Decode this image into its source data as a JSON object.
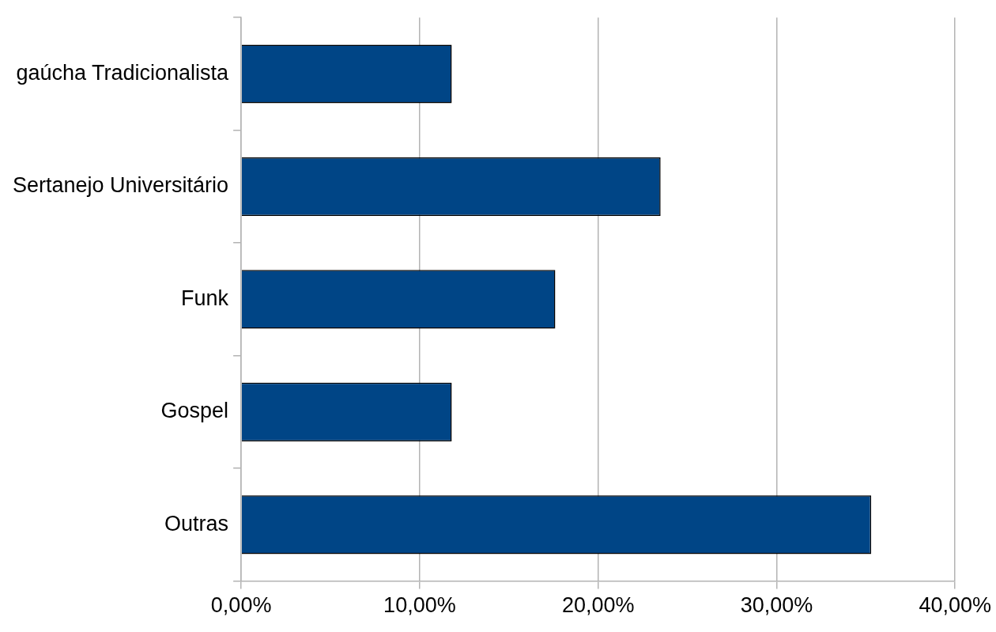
{
  "chart_data": {
    "type": "bar",
    "orientation": "horizontal",
    "categories": [
      "gaúcha Tradicionalista",
      "Sertanejo Universitário",
      "Funk",
      "Gospel",
      "Outras"
    ],
    "values": [
      11.8,
      23.5,
      17.6,
      11.8,
      35.3
    ],
    "color": "#004586",
    "xlim": [
      0,
      40
    ],
    "xticks": [
      {
        "value": 0,
        "label": "0,00%"
      },
      {
        "value": 10,
        "label": "10,00%"
      },
      {
        "value": 20,
        "label": "20,00%"
      },
      {
        "value": 30,
        "label": "30,00%"
      },
      {
        "value": 40,
        "label": "40,00%"
      }
    ],
    "grid": "x",
    "legend": false
  }
}
